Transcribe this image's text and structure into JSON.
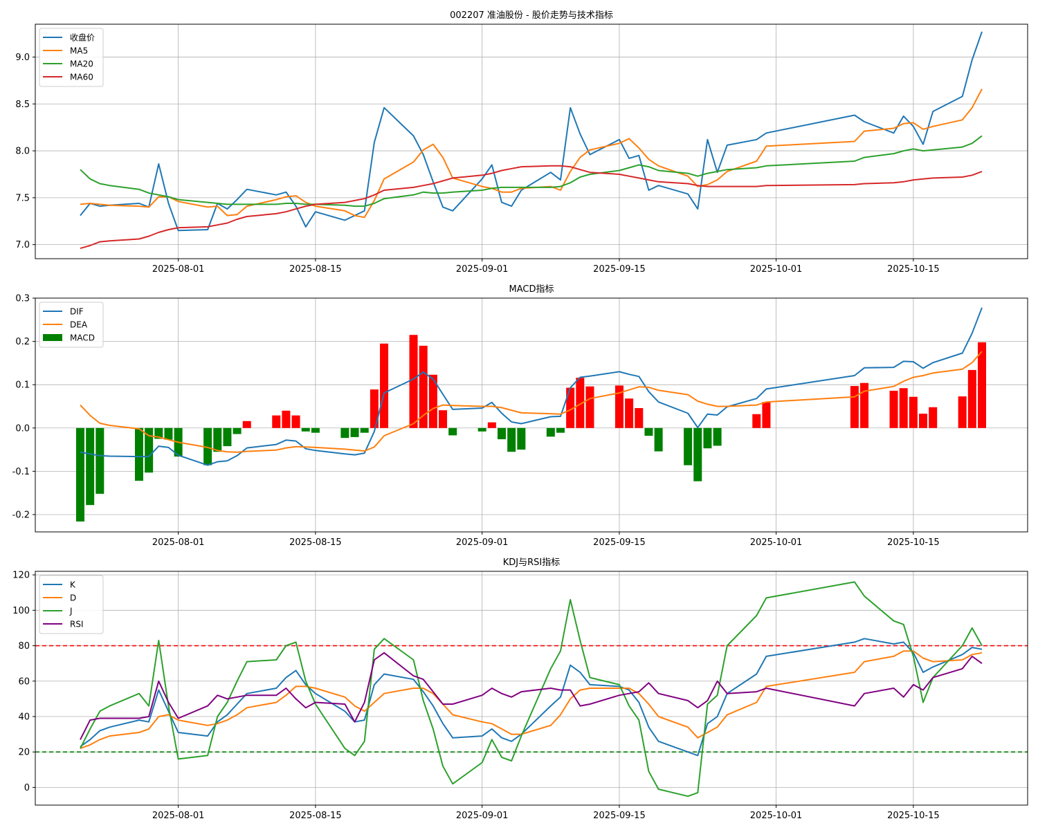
{
  "chart_data": [
    {
      "type": "line",
      "title": "002207 准油股份 - 股价走势与技术指标",
      "ylim": [
        6.85,
        9.35
      ],
      "grid": true,
      "legend_position": "top-left",
      "x_ticks": [
        "2025-08-01",
        "2025-08-15",
        "2025-09-01",
        "2025-09-15",
        "2025-10-01",
        "2025-10-15"
      ],
      "y_ticks": [
        "7.0",
        "7.5",
        "8.0",
        "8.5",
        "9.0"
      ],
      "x": [
        "2025-07-22",
        "2025-07-23",
        "2025-07-24",
        "2025-07-25",
        "2025-07-28",
        "2025-07-29",
        "2025-07-30",
        "2025-07-31",
        "2025-08-01",
        "2025-08-04",
        "2025-08-05",
        "2025-08-06",
        "2025-08-07",
        "2025-08-08",
        "2025-08-11",
        "2025-08-12",
        "2025-08-13",
        "2025-08-14",
        "2025-08-15",
        "2025-08-18",
        "2025-08-19",
        "2025-08-20",
        "2025-08-21",
        "2025-08-22",
        "2025-08-25",
        "2025-08-26",
        "2025-08-27",
        "2025-08-28",
        "2025-08-29",
        "2025-09-01",
        "2025-09-02",
        "2025-09-03",
        "2025-09-04",
        "2025-09-05",
        "2025-09-08",
        "2025-09-09",
        "2025-09-10",
        "2025-09-11",
        "2025-09-12",
        "2025-09-15",
        "2025-09-16",
        "2025-09-17",
        "2025-09-18",
        "2025-09-19",
        "2025-09-22",
        "2025-09-23",
        "2025-09-24",
        "2025-09-25",
        "2025-09-26",
        "2025-09-29",
        "2025-09-30",
        "2025-10-09",
        "2025-10-10",
        "2025-10-13",
        "2025-10-14",
        "2025-10-15",
        "2025-10-16",
        "2025-10-17",
        "2025-10-20",
        "2025-10-21",
        "2025-10-22"
      ],
      "series": [
        {
          "name": "收盘价",
          "color": "#1f77b4",
          "values": [
            7.31,
            7.44,
            7.41,
            7.42,
            7.44,
            7.4,
            7.86,
            7.44,
            7.15,
            7.16,
            7.44,
            7.38,
            7.48,
            7.59,
            7.53,
            7.56,
            7.41,
            7.19,
            7.35,
            7.26,
            7.31,
            7.36,
            8.09,
            8.46,
            8.16,
            7.96,
            7.67,
            7.4,
            7.36,
            7.7,
            7.85,
            7.45,
            7.41,
            7.58,
            7.77,
            7.69,
            8.46,
            8.18,
            7.96,
            8.12,
            7.92,
            7.95,
            7.58,
            7.63,
            7.54,
            7.38,
            8.12,
            7.77,
            8.06,
            8.12,
            8.19,
            8.38,
            8.31,
            8.19,
            8.37,
            8.26,
            8.07,
            8.42,
            8.58,
            8.97,
            9.27
          ]
        },
        {
          "name": "MA5",
          "color": "#ff7f0e",
          "values": [
            7.43,
            7.44,
            7.43,
            7.42,
            7.41,
            7.4,
            7.51,
            7.51,
            7.46,
            7.4,
            7.41,
            7.31,
            7.32,
            7.41,
            7.48,
            7.51,
            7.52,
            7.45,
            7.41,
            7.36,
            7.31,
            7.29,
            7.47,
            7.7,
            7.88,
            8.01,
            8.07,
            7.93,
            7.71,
            7.62,
            7.6,
            7.56,
            7.56,
            7.6,
            7.62,
            7.58,
            7.78,
            7.93,
            8.01,
            8.08,
            8.13,
            8.03,
            7.91,
            7.84,
            7.73,
            7.62,
            7.64,
            7.69,
            7.78,
            7.89,
            8.05,
            8.1,
            8.21,
            8.24,
            8.29,
            8.3,
            8.23,
            8.26,
            8.33,
            8.46,
            8.66
          ]
        },
        {
          "name": "MA20",
          "color": "#2ca02c",
          "values": [
            7.8,
            7.7,
            7.65,
            7.63,
            7.59,
            7.55,
            7.53,
            7.51,
            7.48,
            7.45,
            7.44,
            7.43,
            7.43,
            7.43,
            7.43,
            7.44,
            7.44,
            7.43,
            7.43,
            7.42,
            7.41,
            7.41,
            7.44,
            7.49,
            7.53,
            7.56,
            7.55,
            7.55,
            7.56,
            7.58,
            7.6,
            7.61,
            7.61,
            7.61,
            7.61,
            7.62,
            7.66,
            7.72,
            7.75,
            7.79,
            7.82,
            7.85,
            7.83,
            7.79,
            7.76,
            7.73,
            7.76,
            7.78,
            7.8,
            7.82,
            7.84,
            7.89,
            7.93,
            7.97,
            8.0,
            8.02,
            8.0,
            8.01,
            8.04,
            8.08,
            8.16
          ]
        },
        {
          "name": "MA60",
          "color": "#d62728",
          "values": [
            6.96,
            6.99,
            7.03,
            7.04,
            7.06,
            7.09,
            7.13,
            7.16,
            7.18,
            7.19,
            7.21,
            7.23,
            7.27,
            7.3,
            7.33,
            7.35,
            7.38,
            7.41,
            7.43,
            7.45,
            7.47,
            7.49,
            7.53,
            7.58,
            7.61,
            7.63,
            7.65,
            7.68,
            7.71,
            7.74,
            7.76,
            7.79,
            7.81,
            7.83,
            7.84,
            7.84,
            7.83,
            7.8,
            7.77,
            7.75,
            7.73,
            7.71,
            7.69,
            7.67,
            7.65,
            7.63,
            7.62,
            7.62,
            7.62,
            7.62,
            7.63,
            7.64,
            7.65,
            7.66,
            7.67,
            7.69,
            7.7,
            7.71,
            7.72,
            7.74,
            7.78
          ]
        }
      ]
    },
    {
      "type": "line",
      "title": "MACD指标",
      "ylim": [
        -0.24,
        0.3
      ],
      "grid": true,
      "legend_position": "top-left",
      "x_ticks": [
        "2025-08-01",
        "2025-08-15",
        "2025-09-01",
        "2025-09-15",
        "2025-10-01",
        "2025-10-15"
      ],
      "y_ticks": [
        "-0.2",
        "-0.1",
        "0.0",
        "0.1",
        "0.2",
        "0.3"
      ],
      "x": [
        "2025-07-22",
        "2025-07-23",
        "2025-07-24",
        "2025-07-25",
        "2025-07-28",
        "2025-07-29",
        "2025-07-30",
        "2025-07-31",
        "2025-08-01",
        "2025-08-04",
        "2025-08-05",
        "2025-08-06",
        "2025-08-07",
        "2025-08-08",
        "2025-08-11",
        "2025-08-12",
        "2025-08-13",
        "2025-08-14",
        "2025-08-15",
        "2025-08-18",
        "2025-08-19",
        "2025-08-20",
        "2025-08-21",
        "2025-08-22",
        "2025-08-25",
        "2025-08-26",
        "2025-08-27",
        "2025-08-28",
        "2025-08-29",
        "2025-09-01",
        "2025-09-02",
        "2025-09-03",
        "2025-09-04",
        "2025-09-05",
        "2025-09-08",
        "2025-09-09",
        "2025-09-10",
        "2025-09-11",
        "2025-09-12",
        "2025-09-15",
        "2025-09-16",
        "2025-09-17",
        "2025-09-18",
        "2025-09-19",
        "2025-09-22",
        "2025-09-23",
        "2025-09-24",
        "2025-09-25",
        "2025-09-26",
        "2025-09-29",
        "2025-09-30",
        "2025-10-09",
        "2025-10-10",
        "2025-10-13",
        "2025-10-14",
        "2025-10-15",
        "2025-10-16",
        "2025-10-17",
        "2025-10-20",
        "2025-10-21",
        "2025-10-22"
      ],
      "series": [
        {
          "name": "DIF",
          "color": "#1f77b4",
          "values": [
            -0.056,
            -0.06,
            -0.064,
            -0.065,
            -0.066,
            -0.066,
            -0.042,
            -0.045,
            -0.063,
            -0.086,
            -0.078,
            -0.076,
            -0.064,
            -0.046,
            -0.038,
            -0.028,
            -0.03,
            -0.048,
            -0.052,
            -0.06,
            -0.062,
            -0.058,
            -0.008,
            0.081,
            0.113,
            0.129,
            0.113,
            0.078,
            0.043,
            0.046,
            0.059,
            0.034,
            0.014,
            0.01,
            0.026,
            0.027,
            0.093,
            0.117,
            0.12,
            0.13,
            0.124,
            0.119,
            0.084,
            0.06,
            0.034,
            0.001,
            0.032,
            0.03,
            0.049,
            0.068,
            0.09,
            0.121,
            0.139,
            0.14,
            0.154,
            0.153,
            0.138,
            0.151,
            0.173,
            0.219,
            0.278
          ]
        },
        {
          "name": "DEA",
          "color": "#ff7f0e",
          "values": [
            0.053,
            0.029,
            0.011,
            0.006,
            -0.002,
            -0.018,
            -0.021,
            -0.027,
            -0.033,
            -0.045,
            -0.052,
            -0.055,
            -0.056,
            -0.054,
            -0.051,
            -0.046,
            -0.043,
            -0.044,
            -0.045,
            -0.049,
            -0.051,
            -0.053,
            -0.044,
            -0.018,
            0.01,
            0.029,
            0.045,
            0.053,
            0.052,
            0.05,
            0.05,
            0.047,
            0.041,
            0.035,
            0.033,
            0.032,
            0.042,
            0.055,
            0.068,
            0.081,
            0.088,
            0.095,
            0.094,
            0.087,
            0.077,
            0.062,
            0.055,
            0.05,
            0.05,
            0.053,
            0.06,
            0.072,
            0.085,
            0.096,
            0.108,
            0.117,
            0.121,
            0.127,
            0.136,
            0.151,
            0.177
          ]
        },
        {
          "name": "MACD",
          "color": "#008000",
          "neg_color": "#008000",
          "pos_color": "#ff0000",
          "kind": "bar",
          "values": [
            -0.216,
            -0.178,
            -0.152,
            0,
            -0.122,
            -0.103,
            -0.025,
            -0.027,
            -0.066,
            -0.086,
            -0.055,
            -0.042,
            -0.014,
            0.016,
            0.029,
            0.04,
            0.029,
            -0.008,
            -0.011,
            -0.023,
            -0.021,
            -0.011,
            0.089,
            0.195,
            0.215,
            0.19,
            0.123,
            0.041,
            -0.017,
            -0.008,
            0.013,
            -0.026,
            -0.055,
            -0.05,
            -0.02,
            -0.011,
            0.093,
            0.116,
            0.096,
            0.098,
            0.068,
            0.046,
            -0.018,
            -0.054,
            -0.086,
            -0.123,
            -0.047,
            -0.041,
            0,
            0.032,
            0.06,
            0.097,
            0.104,
            0.086,
            0.092,
            0.072,
            0.033,
            0.048,
            0.073,
            0.134,
            0.198
          ]
        }
      ]
    },
    {
      "type": "line",
      "title": "KDJ与RSI指标",
      "ylim": [
        -10,
        122
      ],
      "grid": true,
      "legend_position": "top-left",
      "reference_lines": [
        {
          "value": 80,
          "color": "#ff0000",
          "style": "dashed"
        },
        {
          "value": 20,
          "color": "#008000",
          "style": "dashed"
        }
      ],
      "x_ticks": [
        "2025-08-01",
        "2025-08-15",
        "2025-09-01",
        "2025-09-15",
        "2025-10-01",
        "2025-10-15"
      ],
      "y_ticks": [
        "0",
        "20",
        "40",
        "60",
        "80",
        "100",
        "120"
      ],
      "x": [
        "2025-07-22",
        "2025-07-23",
        "2025-07-24",
        "2025-07-25",
        "2025-07-28",
        "2025-07-29",
        "2025-07-30",
        "2025-07-31",
        "2025-08-01",
        "2025-08-04",
        "2025-08-05",
        "2025-08-06",
        "2025-08-07",
        "2025-08-08",
        "2025-08-11",
        "2025-08-12",
        "2025-08-13",
        "2025-08-14",
        "2025-08-15",
        "2025-08-18",
        "2025-08-19",
        "2025-08-20",
        "2025-08-21",
        "2025-08-22",
        "2025-08-25",
        "2025-08-26",
        "2025-08-27",
        "2025-08-28",
        "2025-08-29",
        "2025-09-01",
        "2025-09-02",
        "2025-09-03",
        "2025-09-04",
        "2025-09-05",
        "2025-09-08",
        "2025-09-09",
        "2025-09-10",
        "2025-09-11",
        "2025-09-12",
        "2025-09-15",
        "2025-09-16",
        "2025-09-17",
        "2025-09-18",
        "2025-09-19",
        "2025-09-22",
        "2025-09-23",
        "2025-09-24",
        "2025-09-25",
        "2025-09-26",
        "2025-09-29",
        "2025-09-30",
        "2025-10-09",
        "2025-10-10",
        "2025-10-13",
        "2025-10-14",
        "2025-10-15",
        "2025-10-16",
        "2025-10-17",
        "2025-10-20",
        "2025-10-21",
        "2025-10-22"
      ],
      "series": [
        {
          "name": "K",
          "color": "#1f77b4",
          "values": [
            23,
            27,
            32,
            34,
            38,
            37,
            55,
            43,
            31,
            29,
            37,
            41,
            47,
            53,
            56,
            62,
            66,
            58,
            53,
            43,
            37,
            38,
            58,
            64,
            61,
            54,
            46,
            36,
            28,
            29,
            33,
            28,
            26,
            30,
            46,
            51,
            69,
            65,
            58,
            57,
            55,
            48,
            34,
            26,
            20,
            18,
            36,
            40,
            53,
            64,
            74,
            82,
            84,
            81,
            82,
            76,
            65,
            68,
            75,
            79,
            78
          ]
        },
        {
          "name": "D",
          "color": "#ff7f0e",
          "values": [
            22,
            24,
            27,
            29,
            31,
            33,
            40,
            41,
            38,
            35,
            36,
            38,
            41,
            45,
            48,
            52,
            57,
            57,
            56,
            51,
            46,
            43,
            48,
            53,
            56,
            56,
            53,
            47,
            41,
            37,
            36,
            33,
            30,
            30,
            35,
            41,
            50,
            55,
            56,
            56,
            56,
            53,
            47,
            40,
            34,
            28,
            31,
            34,
            41,
            48,
            57,
            65,
            71,
            74,
            77,
            77,
            73,
            71,
            72,
            75,
            76
          ]
        },
        {
          "name": "J",
          "color": "#2ca02c",
          "values": [
            22,
            33,
            43,
            46,
            53,
            46,
            83,
            46,
            16,
            18,
            40,
            48,
            60,
            71,
            72,
            80,
            82,
            60,
            47,
            22,
            18,
            26,
            78,
            84,
            72,
            49,
            33,
            12,
            2,
            14,
            27,
            17,
            15,
            29,
            67,
            77,
            106,
            83,
            62,
            58,
            46,
            38,
            9,
            -1,
            -5,
            -3,
            47,
            52,
            80,
            97,
            107,
            116,
            108,
            94,
            92,
            74,
            48,
            62,
            80,
            90,
            80
          ]
        },
        {
          "name": "RSI",
          "color": "#800080",
          "values": [
            27,
            38,
            39,
            39,
            39,
            40,
            60,
            48,
            39,
            46,
            52,
            50,
            51,
            52,
            52,
            56,
            50,
            45,
            48,
            47,
            37,
            48,
            72,
            76,
            63,
            61,
            54,
            47,
            47,
            52,
            56,
            53,
            51,
            54,
            56,
            55,
            55,
            46,
            47,
            52,
            53,
            54,
            59,
            53,
            49,
            45,
            49,
            60,
            53,
            54,
            56,
            46,
            53,
            56,
            51,
            58,
            55,
            62,
            67,
            74,
            70
          ]
        }
      ]
    }
  ]
}
